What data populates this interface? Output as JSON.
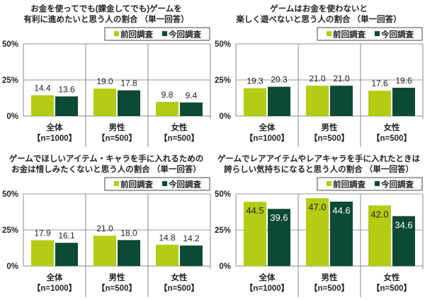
{
  "legend": [
    "前回調査",
    "今回調査"
  ],
  "colors": {
    "previous": "#b3cc14",
    "current": "#0d4a33"
  },
  "chart_data": [
    {
      "type": "bar",
      "title": [
        "お金を使ってでも(課金してでも)ゲームを",
        "有利に進めたいと思う人の割合 （単一回答）"
      ],
      "categories": [
        [
          "全体",
          "【n=1000】"
        ],
        [
          "男性",
          "【n=500】"
        ],
        [
          "女性",
          "【n=500】"
        ]
      ],
      "series": [
        {
          "name": "前回調査",
          "values": [
            14.4,
            19.0,
            9.8
          ]
        },
        {
          "name": "今回調査",
          "values": [
            13.6,
            17.8,
            9.4
          ]
        }
      ],
      "yticks": [
        "0%",
        "25%",
        "50%"
      ],
      "ylim": [
        0,
        50
      ],
      "grid": true,
      "legend": "top-right",
      "labels": "above"
    },
    {
      "type": "bar",
      "title": [
        "ゲームはお金を使わないと",
        "楽しく遊べないと思う人の割合 （単一回答）"
      ],
      "categories": [
        [
          "全体",
          "【n=1000】"
        ],
        [
          "男性",
          "【n=500】"
        ],
        [
          "女性",
          "【n=500】"
        ]
      ],
      "series": [
        {
          "name": "前回調査",
          "values": [
            19.3,
            21.0,
            17.6
          ]
        },
        {
          "name": "今回調査",
          "values": [
            20.3,
            21.0,
            19.6
          ]
        }
      ],
      "yticks": [
        "0%",
        "25%",
        "50%"
      ],
      "ylim": [
        0,
        50
      ],
      "grid": true,
      "legend": "top-right",
      "labels": "above"
    },
    {
      "type": "bar",
      "title": [
        "ゲームでほしいアイテム・キャラを手に入れるための",
        "お金は惜しみたくないと思う人の割合 （単一回答）"
      ],
      "categories": [
        [
          "全体",
          "【n=1000】"
        ],
        [
          "男性",
          "【n=500】"
        ],
        [
          "女性",
          "【n=500】"
        ]
      ],
      "series": [
        {
          "name": "前回調査",
          "values": [
            17.9,
            21.0,
            14.8
          ]
        },
        {
          "name": "今回調査",
          "values": [
            16.1,
            18.0,
            14.2
          ]
        }
      ],
      "yticks": [
        "0%",
        "25%",
        "50%"
      ],
      "ylim": [
        0,
        50
      ],
      "grid": true,
      "legend": "top-right",
      "labels": "above"
    },
    {
      "type": "bar",
      "title": [
        "ゲームでレアアイテムやレアキャラを手に入れたときは",
        "誇らしい気持ちになると思う人の割合 （単一回答）"
      ],
      "categories": [
        [
          "全体",
          "【n=1000】"
        ],
        [
          "男性",
          "【n=500】"
        ],
        [
          "女性",
          "【n=500】"
        ]
      ],
      "series": [
        {
          "name": "前回調査",
          "values": [
            44.5,
            47.0,
            42.0
          ]
        },
        {
          "name": "今回調査",
          "values": [
            39.6,
            44.6,
            34.6
          ]
        }
      ],
      "yticks": [
        "0%",
        "25%",
        "50%"
      ],
      "ylim": [
        0,
        50
      ],
      "grid": true,
      "legend": "top-right",
      "labels": "inside"
    }
  ]
}
